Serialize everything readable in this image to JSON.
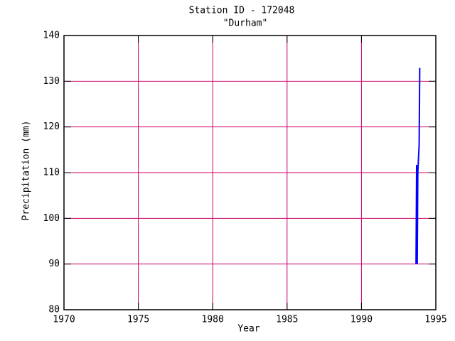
{
  "chart_data": {
    "type": "line",
    "title": "Station ID - 172048",
    "subtitle": "\"Durham\"",
    "x_label": "Year",
    "y_label": "Precipitation (mm)",
    "x": [
      1993.67,
      1993.71,
      1993.75,
      1993.79,
      1993.88,
      1993.92
    ],
    "series": [
      {
        "color": "#0000ff",
        "values": [
          90,
          111.7,
          90,
          110,
          116.1,
          132.9
        ]
      }
    ],
    "xlim": [
      1970,
      1995
    ],
    "xticks": [
      1970,
      1975,
      1980,
      1985,
      1990,
      1995
    ],
    "ylim": [
      80,
      140
    ],
    "yticks": [
      80,
      90,
      100,
      110,
      120,
      130,
      140
    ],
    "grid": true,
    "grid_color": "#cc0066"
  }
}
